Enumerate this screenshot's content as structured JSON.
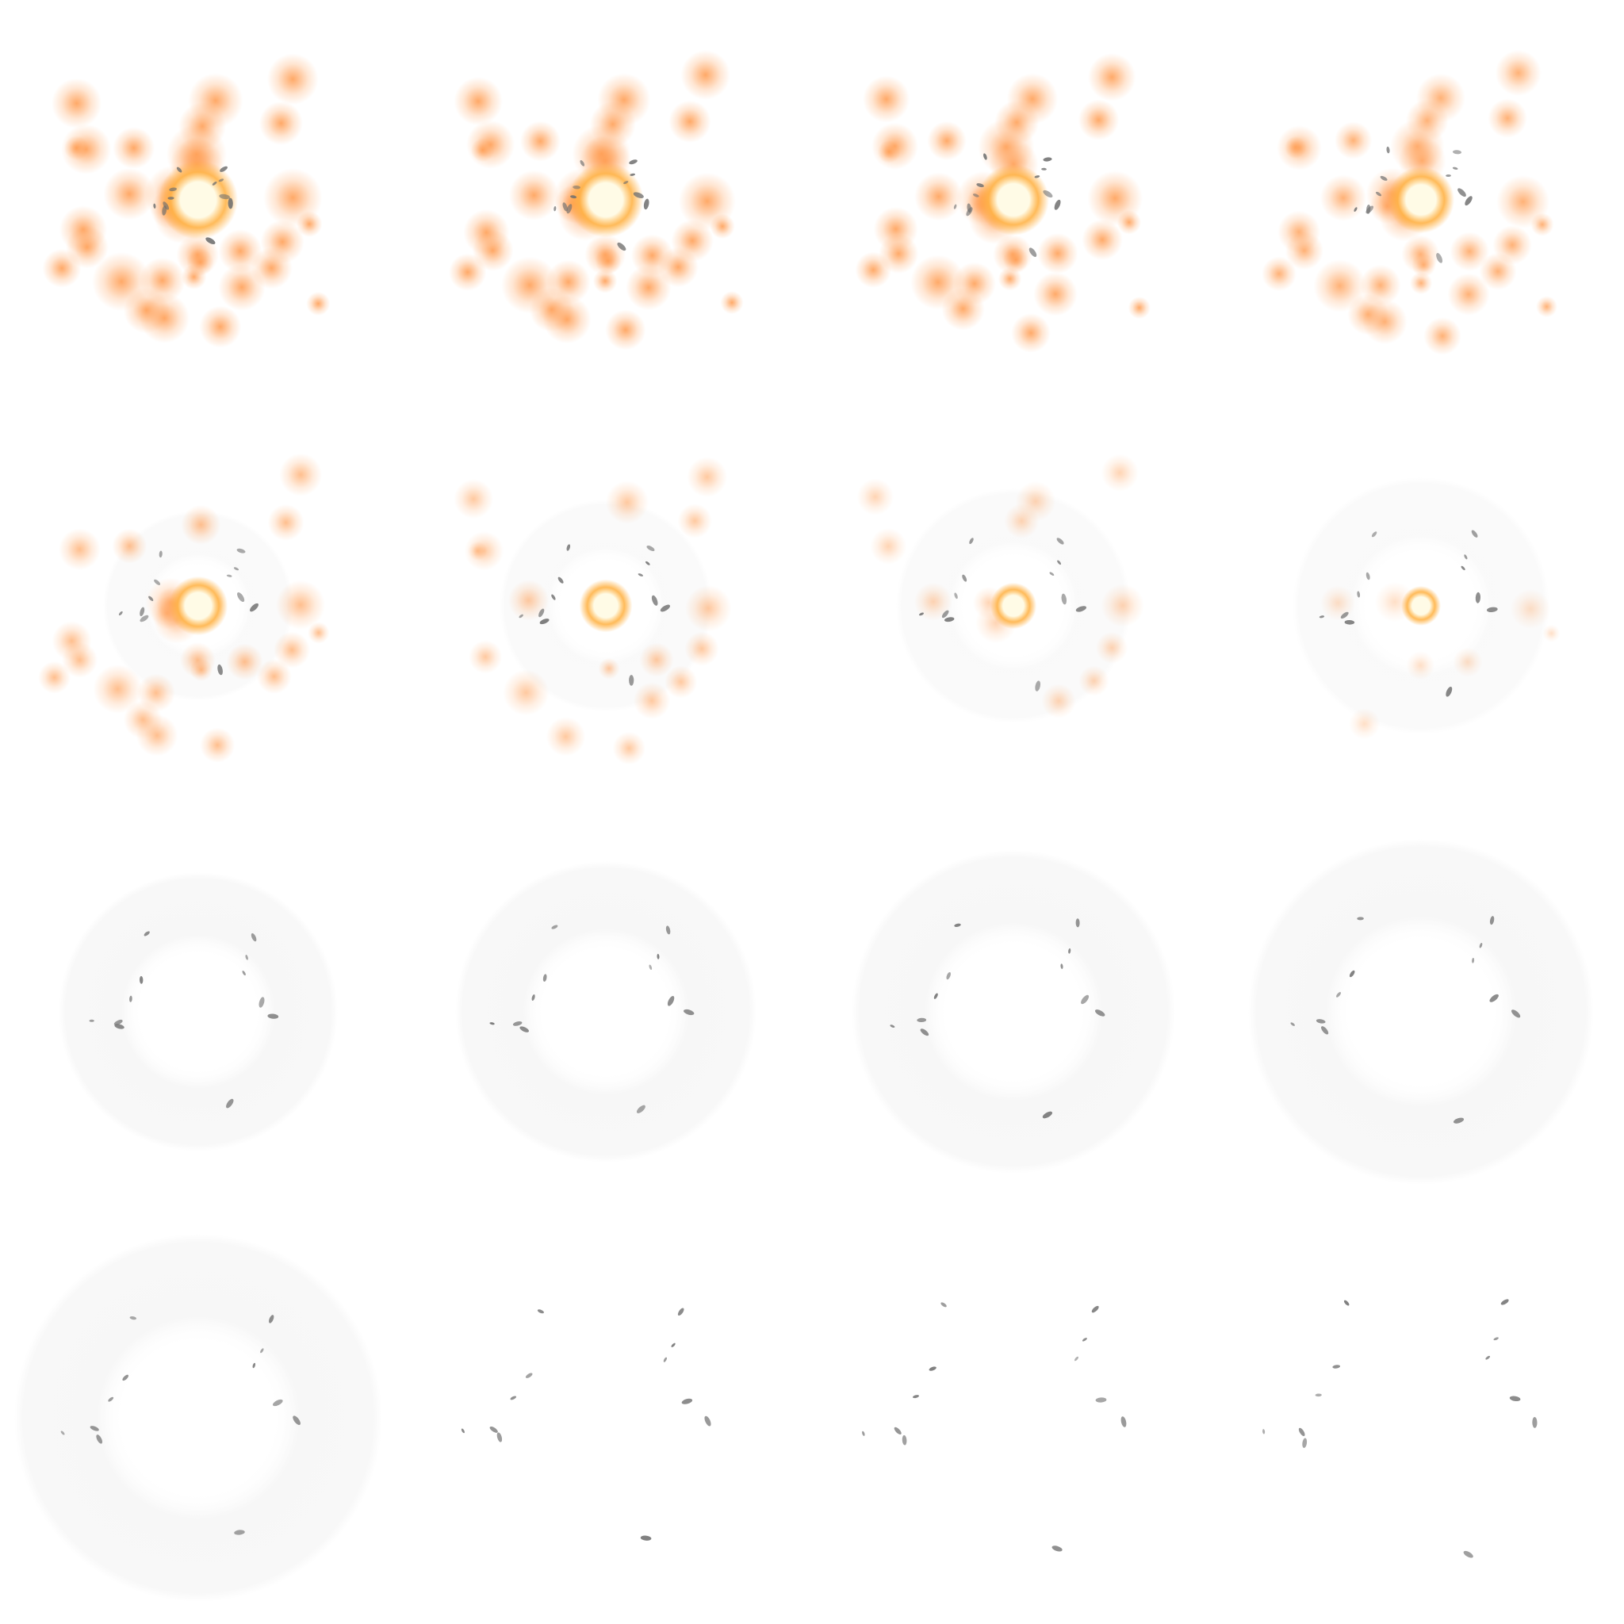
{
  "sprite_sheet": {
    "columns": 4,
    "rows": 4,
    "frame_count": 16,
    "content": "explosion-animation-frames",
    "colors": {
      "background": "#ffffff",
      "core": "#fffbe6",
      "core_glow": "#ffb347",
      "spark": "#ff9a4d",
      "smoke_ring": "#f7f7f7",
      "debris": "#6f6f6f"
    },
    "frames": [
      {
        "index": 1,
        "phase": "flash",
        "intensity": 1.0
      },
      {
        "index": 2,
        "phase": "flash",
        "intensity": 0.92
      },
      {
        "index": 3,
        "phase": "flash",
        "intensity": 0.84
      },
      {
        "index": 4,
        "phase": "flash",
        "intensity": 0.75
      },
      {
        "index": 5,
        "phase": "burst",
        "intensity": 0.6
      },
      {
        "index": 6,
        "phase": "burst",
        "intensity": 0.48
      },
      {
        "index": 7,
        "phase": "burst",
        "intensity": 0.35
      },
      {
        "index": 8,
        "phase": "burst",
        "intensity": 0.22
      },
      {
        "index": 9,
        "phase": "smoke",
        "intensity": 0.1
      },
      {
        "index": 10,
        "phase": "smoke",
        "intensity": 0.08
      },
      {
        "index": 11,
        "phase": "smoke",
        "intensity": 0.06
      },
      {
        "index": 12,
        "phase": "smoke",
        "intensity": 0.05
      },
      {
        "index": 13,
        "phase": "debris",
        "intensity": 0.04
      },
      {
        "index": 14,
        "phase": "debris",
        "intensity": 0.0
      },
      {
        "index": 15,
        "phase": "debris",
        "intensity": 0.0
      },
      {
        "index": 16,
        "phase": "debris",
        "intensity": 0.0
      }
    ]
  }
}
